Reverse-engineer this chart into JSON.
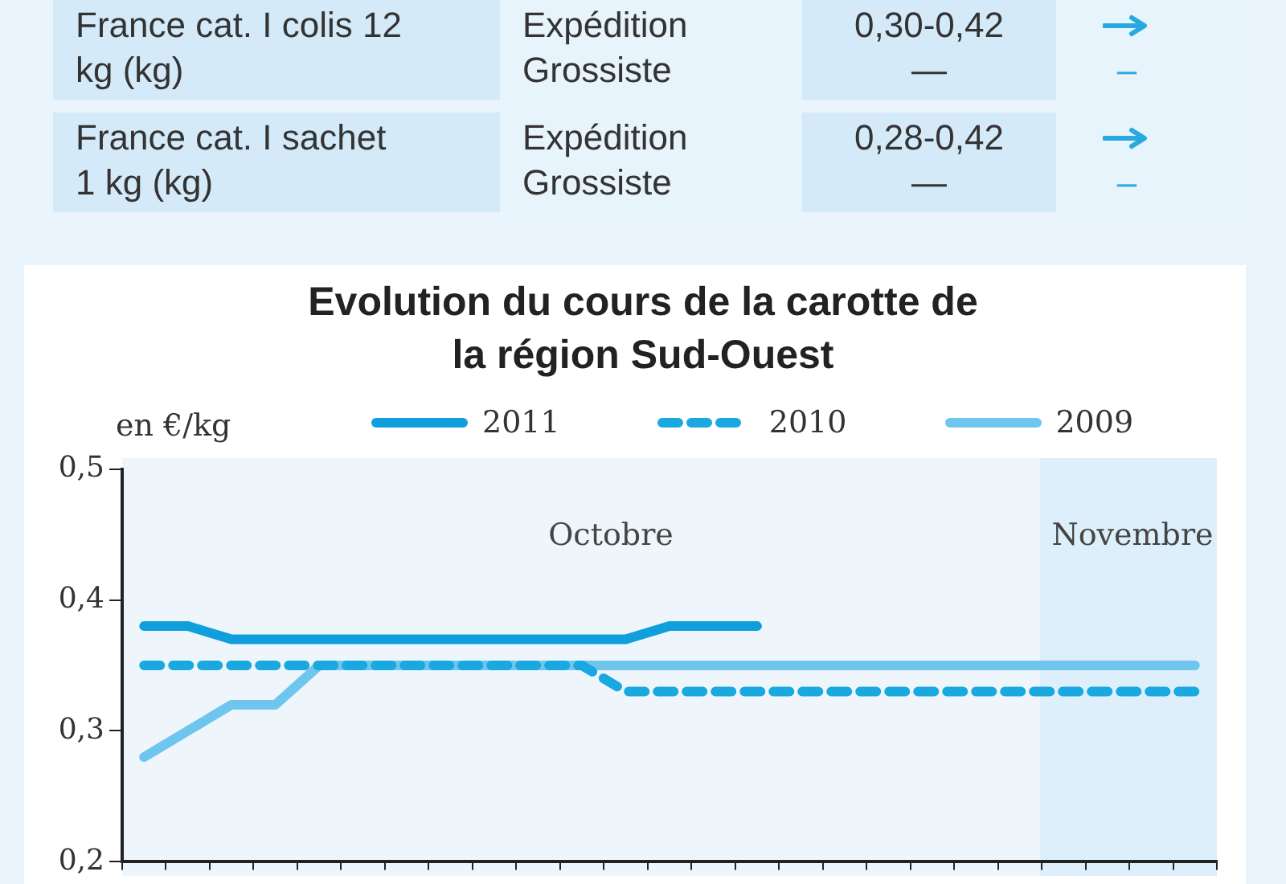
{
  "chart_data": {
    "type": "line",
    "title": "Evolution du cours de la carotte de la région Sud-Ouest",
    "ylabel": "en €/kg",
    "categories": [
      null,
      null,
      null,
      null,
      null,
      null,
      null,
      null,
      null,
      null,
      null,
      null,
      null,
      null,
      null,
      null,
      null,
      null,
      null,
      null,
      null,
      null,
      null,
      null,
      null
    ],
    "series": [
      {
        "name": "2011",
        "color": "#0f9fdc",
        "line_style": "solid",
        "values": [
          0.38,
          0.38,
          0.37,
          0.37,
          0.37,
          0.37,
          0.37,
          0.37,
          0.37,
          0.37,
          0.37,
          0.37,
          0.38,
          0.38,
          0.38,
          null,
          null,
          null,
          null,
          null,
          null,
          null,
          null,
          null,
          null
        ]
      },
      {
        "name": "2010",
        "color": "#1aa8e0",
        "line_style": "dashed",
        "values": [
          0.35,
          0.35,
          0.35,
          0.35,
          0.35,
          0.35,
          0.35,
          0.35,
          0.35,
          0.35,
          0.35,
          0.33,
          0.33,
          0.33,
          0.33,
          0.33,
          0.33,
          0.33,
          0.33,
          0.33,
          0.33,
          0.33,
          0.33,
          0.33,
          0.33
        ]
      },
      {
        "name": "2009",
        "color": "#6ec6ee",
        "line_style": "solid",
        "values": [
          0.28,
          0.3,
          0.32,
          0.32,
          0.35,
          0.35,
          0.35,
          0.35,
          0.35,
          0.35,
          0.35,
          0.35,
          0.35,
          0.35,
          0.35,
          0.35,
          0.35,
          0.35,
          0.35,
          0.35,
          0.35,
          0.35,
          0.35,
          0.35,
          0.35
        ]
      }
    ],
    "ylim": [
      0.2,
      0.5
    ],
    "yticks": [
      {
        "value": 0.2,
        "label": "0,2"
      },
      {
        "value": 0.3,
        "label": "0,3"
      },
      {
        "value": 0.4,
        "label": "0,4"
      },
      {
        "value": 0.5,
        "label": "0,5"
      }
    ],
    "tick_labels": "y",
    "legend": "top",
    "annotations": [
      "France cat. I colis 12 kg (kg)",
      "Expédition Grossiste",
      "0,30-0,42",
      "—",
      "–",
      "France cat. I sachet 1 kg (kg)",
      "Expédition Grossiste",
      "0,28-0,42",
      "—",
      "–",
      "Octobre",
      "Novembre"
    ]
  }
}
